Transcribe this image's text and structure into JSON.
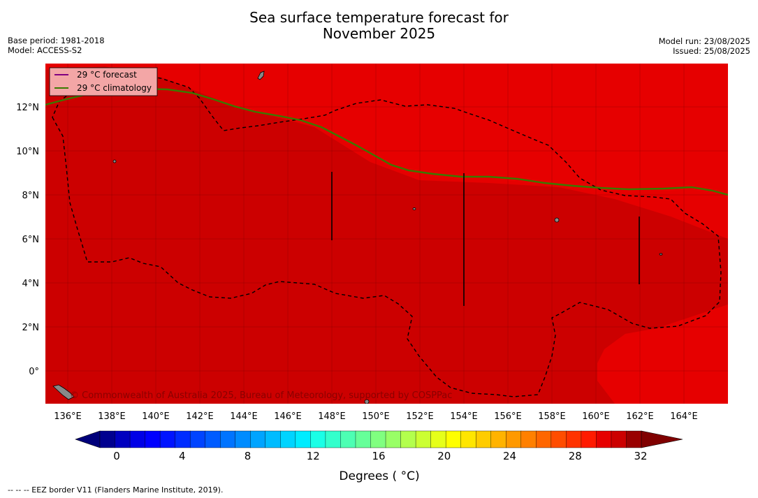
{
  "title_line1": "Sea surface temperature forecast for",
  "title_line2": "November 2025",
  "base_period": "Base period: 1981-2018",
  "model": "Model: ACCESS-S2",
  "model_run": "Model run: 23/08/2025",
  "issued": "Issued: 25/08/2025",
  "legend": {
    "forecast_label": "29 °C  forecast",
    "climatology_label": "29 °C  climatology",
    "forecast_color": "#800080",
    "climatology_color": "#3a7a00"
  },
  "lon_ticks": [
    "136°E",
    "138°E",
    "140°E",
    "142°E",
    "144°E",
    "146°E",
    "148°E",
    "150°E",
    "152°E",
    "154°E",
    "156°E",
    "158°E",
    "160°E",
    "162°E",
    "164°E"
  ],
  "lat_ticks": [
    "12°N",
    "10°N",
    "8°N",
    "6°N",
    "4°N",
    "2°N",
    "0°"
  ],
  "colorbar": {
    "ticks": [
      "0",
      "4",
      "8",
      "12",
      "16",
      "20",
      "24",
      "28",
      "32"
    ],
    "label": "Degrees ( °C)",
    "colors": [
      "#00008f",
      "#0000bf",
      "#0000e6",
      "#0000ff",
      "#0014ff",
      "#002cff",
      "#0044ff",
      "#005cff",
      "#0074ff",
      "#008cff",
      "#00a4ff",
      "#00bcff",
      "#00d4ff",
      "#00ecff",
      "#1affe6",
      "#33ffcc",
      "#4dffb3",
      "#66ff99",
      "#80ff80",
      "#99ff66",
      "#b3ff4d",
      "#ccff33",
      "#e6ff1a",
      "#ffff00",
      "#ffe600",
      "#ffcc00",
      "#ffb300",
      "#ff9900",
      "#ff8000",
      "#ff6600",
      "#ff4d00",
      "#ff3300",
      "#ff1a00",
      "#e60000",
      "#cc0000",
      "#990000"
    ],
    "under_color": "#00007a",
    "over_color": "#800000"
  },
  "copyright": "© Commonwealth of Australia 2025, Bureau of Meteorology, supported by COSPPac",
  "footnote": "--  --  -- EEZ border V11 (Flanders Marine Institute, 2019).",
  "map_colors": {
    "warm": "#e60000",
    "warmer": "#cc0000",
    "land": "#888888"
  }
}
